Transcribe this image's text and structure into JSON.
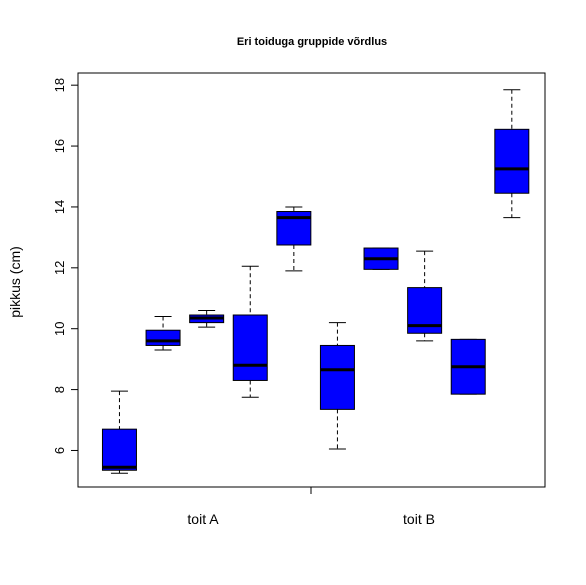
{
  "chart_data": {
    "type": "boxplot",
    "title": "Eri toiduga gruppide võrdlus",
    "ylabel": "pikkus (cm)",
    "xlabel": "",
    "ylim": [
      4.8,
      18.4
    ],
    "yticks": [
      6,
      8,
      10,
      12,
      14,
      16,
      18
    ],
    "box_color": "#0000ff",
    "categories": [
      "toit A",
      "toit B"
    ],
    "boxes": [
      {
        "group": "toit A",
        "min": 5.25,
        "q1": 5.35,
        "median": 5.45,
        "q3": 6.7,
        "max": 7.95
      },
      {
        "group": "toit A",
        "min": 9.3,
        "q1": 9.45,
        "median": 9.6,
        "q3": 9.95,
        "max": 10.4
      },
      {
        "group": "toit A",
        "min": 10.05,
        "q1": 10.2,
        "median": 10.35,
        "q3": 10.45,
        "max": 10.6
      },
      {
        "group": "toit A",
        "min": 7.75,
        "q1": 8.3,
        "median": 8.8,
        "q3": 10.45,
        "max": 12.05
      },
      {
        "group": "toit A",
        "min": 11.9,
        "q1": 12.75,
        "median": 13.65,
        "q3": 13.85,
        "max": 14.0
      },
      {
        "group": "toit B",
        "min": 6.05,
        "q1": 7.35,
        "median": 8.65,
        "q3": 9.45,
        "max": 10.2
      },
      {
        "group": "toit B",
        "min": 11.95,
        "q1": 11.95,
        "median": 12.3,
        "q3": 12.65,
        "max": 12.65
      },
      {
        "group": "toit B",
        "min": 9.6,
        "q1": 9.85,
        "median": 10.1,
        "q3": 11.35,
        "max": 12.55
      },
      {
        "group": "toit B",
        "min": 7.85,
        "q1": 7.85,
        "median": 8.75,
        "q3": 9.65,
        "max": 9.65
      },
      {
        "group": "toit B",
        "min": 13.65,
        "q1": 14.45,
        "median": 15.25,
        "q3": 16.55,
        "max": 17.85
      }
    ]
  }
}
